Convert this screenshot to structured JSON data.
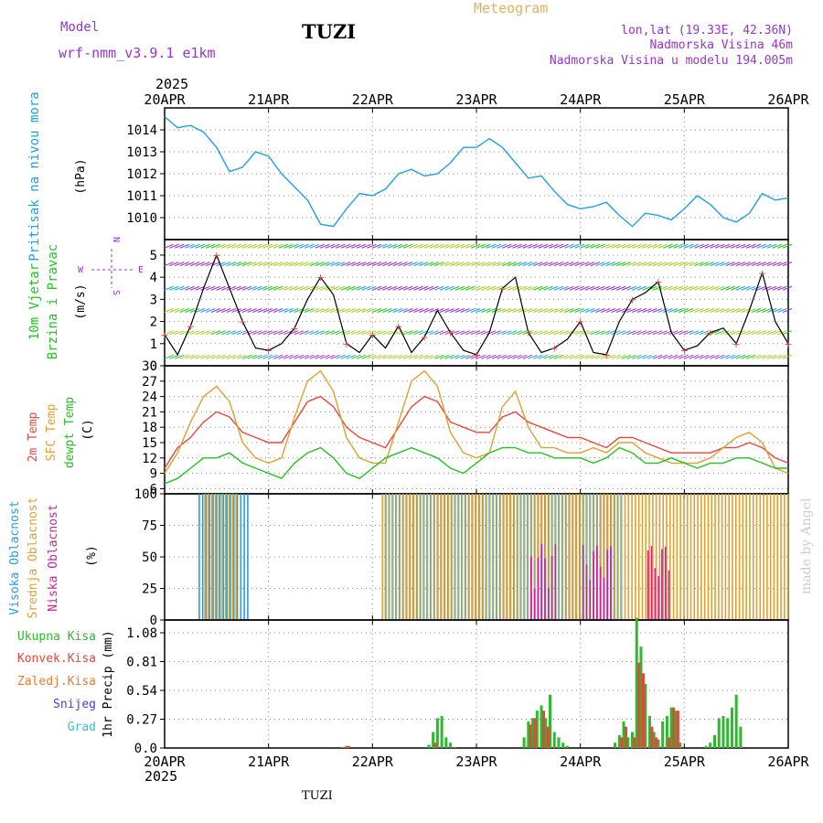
{
  "header": {
    "model_label": "Model",
    "model_name": "wrf-nmm_v3.9.1 e1km",
    "station": "TUZI",
    "product": "Meteogram",
    "coords": "lon,lat (19.33E, 42.36N)",
    "elevation": "Nadmorska Visina 46m",
    "model_elevation": "Nadmorska Visina u modelu 194.005m",
    "year_top": "2025",
    "year_bottom": "2025",
    "footer_station": "TUZI",
    "credit": "made by Angel"
  },
  "colors": {
    "pressure": "#1fa0e6",
    "t2m": "#e8463c",
    "sfc": "#e0a030",
    "dewpt": "#22c422",
    "high_cloud": "#1ea0e6",
    "mid_cloud": "#e0a030",
    "low_cloud": "#cc2299",
    "total_precip": "#2db82d",
    "conv_precip": "#e8463c",
    "strat_precip": "#e87a30",
    "snow": "#4040e0",
    "graupel": "#30c8c8",
    "wind_axis": "#9933cc",
    "title": "#9933cc",
    "meteogram_label": "#e0b060"
  },
  "x_axis": {
    "tick_labels": [
      "20APR",
      "21APR",
      "22APR",
      "23APR",
      "24APR",
      "25APR",
      "26APR"
    ]
  },
  "panels": {
    "pressure": {
      "label_main": "Pritisak na nivou mora",
      "unit": "(hPa)"
    },
    "wind": {
      "label_line1": "10m Vjetar",
      "label_line2": "Brzina i Pravac",
      "unit": "(m/s)",
      "compass_w": "W",
      "compass_e": "E",
      "compass_n": "N",
      "compass_s": "S"
    },
    "temp": {
      "label_t2m": "2m Temp",
      "label_sfc": "SFC Temp",
      "label_dew": "dewpt Temp",
      "unit": "(C)"
    },
    "cloud": {
      "label_high": "Visoka Oblacnost",
      "label_mid": "Srednja Oblacnost",
      "label_low": "Niska Oblacnost",
      "unit": "(%)"
    },
    "precip": {
      "legend_total": "Ukupna Kisa",
      "legend_conv": "Konvek.Kisa",
      "legend_strat": "Zaledj.Kisa",
      "legend_snow": "Snijeg",
      "legend_graupel": "Grad",
      "ylabel": "1hr Precip (mm)"
    }
  },
  "chart_data": [
    {
      "type": "line",
      "name": "pressure",
      "ylim": [
        1009,
        1015
      ],
      "y_ticks": [
        1010,
        1011,
        1012,
        1013,
        1014
      ],
      "x_hours": [
        0,
        3,
        6,
        9,
        12,
        15,
        18,
        21,
        24,
        27,
        30,
        33,
        36,
        39,
        42,
        45,
        48,
        51,
        54,
        57,
        60,
        63,
        66,
        69,
        72,
        75,
        78,
        81,
        84,
        87,
        90,
        93,
        96,
        99,
        102,
        105,
        108,
        111,
        114,
        117,
        120,
        123,
        126,
        129,
        132,
        135,
        138,
        141,
        144
      ],
      "values": [
        1014.6,
        1014.1,
        1014.2,
        1013.9,
        1013.2,
        1012.1,
        1012.3,
        1013.0,
        1012.8,
        1012.0,
        1011.4,
        1010.8,
        1009.7,
        1009.6,
        1010.4,
        1011.1,
        1011.0,
        1011.3,
        1012.0,
        1012.2,
        1011.9,
        1012.0,
        1012.5,
        1013.2,
        1013.2,
        1013.6,
        1013.2,
        1012.5,
        1011.8,
        1011.9,
        1011.2,
        1010.6,
        1010.4,
        1010.5,
        1010.7,
        1010.1,
        1009.6,
        1010.2,
        1010.1,
        1009.9,
        1010.4,
        1011.0,
        1010.6,
        1010.0,
        1009.8,
        1010.2,
        1011.1,
        1010.8,
        1010.9
      ]
    },
    {
      "type": "line",
      "name": "wind_speed",
      "ylim": [
        0,
        5.7
      ],
      "y_ticks": [
        0,
        1,
        2,
        3,
        4,
        5
      ],
      "x_hours": [
        0,
        3,
        6,
        9,
        12,
        15,
        18,
        21,
        24,
        27,
        30,
        33,
        36,
        39,
        42,
        45,
        48,
        51,
        54,
        57,
        60,
        63,
        66,
        69,
        72,
        75,
        78,
        81,
        84,
        87,
        90,
        93,
        96,
        99,
        102,
        105,
        108,
        111,
        114,
        117,
        120,
        123,
        126,
        129,
        132,
        135,
        138,
        141,
        144
      ],
      "values": [
        1.4,
        0.5,
        1.8,
        3.5,
        5.0,
        3.5,
        2.0,
        0.8,
        0.7,
        1.0,
        1.7,
        3.0,
        4.0,
        3.2,
        1.0,
        0.6,
        1.4,
        0.8,
        1.8,
        0.6,
        1.3,
        2.5,
        1.5,
        0.7,
        0.5,
        1.5,
        3.5,
        4.0,
        1.5,
        0.6,
        0.8,
        1.2,
        2.0,
        0.6,
        0.5,
        2.0,
        3.0,
        3.3,
        3.8,
        1.5,
        0.7,
        0.9,
        1.5,
        1.7,
        1.0,
        2.5,
        4.2,
        2.0,
        1.0
      ]
    },
    {
      "type": "line",
      "name": "temperature",
      "ylim": [
        5,
        30
      ],
      "y_ticks": [
        6,
        9,
        12,
        15,
        18,
        21,
        24,
        27,
        30
      ],
      "x_hours": [
        0,
        3,
        6,
        9,
        12,
        15,
        18,
        21,
        24,
        27,
        30,
        33,
        36,
        39,
        42,
        45,
        48,
        51,
        54,
        57,
        60,
        63,
        66,
        69,
        72,
        75,
        78,
        81,
        84,
        87,
        90,
        93,
        96,
        99,
        102,
        105,
        108,
        111,
        114,
        117,
        120,
        123,
        126,
        129,
        132,
        135,
        138,
        141,
        144
      ],
      "series": [
        {
          "name": "2m Temp",
          "key": "t2m",
          "values": [
            10,
            14,
            16,
            19,
            21,
            20,
            17,
            16,
            15,
            15,
            19,
            23,
            24,
            22,
            18,
            16,
            15,
            14,
            18,
            22,
            24,
            23,
            19,
            18,
            17,
            17,
            20,
            21,
            19,
            18,
            17,
            16,
            16,
            15,
            14,
            16,
            16,
            15,
            14,
            13,
            13,
            13,
            13,
            14,
            14,
            15,
            14,
            12,
            11
          ]
        },
        {
          "name": "SFC Temp",
          "key": "sfc",
          "values": [
            9,
            13,
            19,
            24,
            26,
            23,
            15,
            12,
            11,
            12,
            20,
            27,
            29,
            25,
            16,
            12,
            11,
            11,
            19,
            27,
            29,
            26,
            17,
            13,
            12,
            13,
            22,
            25,
            18,
            14,
            14,
            13,
            13,
            14,
            13,
            15,
            15,
            13,
            12,
            11,
            11,
            11,
            12,
            14,
            16,
            17,
            15,
            10,
            9
          ]
        },
        {
          "name": "dewpt Temp",
          "key": "dewpt",
          "values": [
            7,
            8,
            10,
            12,
            12,
            13,
            11,
            10,
            9,
            8,
            11,
            13,
            14,
            12,
            9,
            8,
            10,
            12,
            13,
            14,
            13,
            12,
            10,
            9,
            11,
            13,
            14,
            14,
            13,
            13,
            12,
            12,
            12,
            11,
            12,
            14,
            13,
            11,
            11,
            12,
            11,
            10,
            11,
            11,
            12,
            12,
            11,
            10,
            10
          ]
        }
      ]
    },
    {
      "type": "bar",
      "name": "cloud_cover",
      "ylim": [
        0,
        100
      ],
      "y_ticks": [
        0,
        25,
        50,
        75,
        100
      ],
      "series": [
        {
          "name": "Visoka Oblacnost",
          "key": "high_cloud",
          "intervals": [
            [
              8,
              20
            ],
            [
              51,
              106
            ]
          ],
          "value": 100
        },
        {
          "name": "Srednja Oblacnost",
          "key": "mid_cloud",
          "intervals": [
            [
              9,
              17
            ],
            [
              50,
              144
            ]
          ],
          "value": 100
        },
        {
          "name": "Niska Oblacnost",
          "key": "low_cloud",
          "intervals": [
            [
              84,
              90
            ],
            [
              96,
              103
            ],
            [
              111,
              116
            ]
          ],
          "value": 60
        }
      ]
    },
    {
      "type": "bar",
      "name": "precipitation",
      "ylim": [
        0,
        1.2
      ],
      "y_ticks": [
        0,
        0.27,
        0.54,
        0.81,
        1.08
      ],
      "series": [
        {
          "name": "Ukupna Kisa",
          "key": "total_precip",
          "x_hours": [
            41,
            42,
            61,
            62,
            63,
            64,
            65,
            66,
            67,
            83,
            84,
            85,
            86,
            87,
            88,
            89,
            90,
            91,
            92,
            93,
            104,
            105,
            106,
            107,
            108,
            109,
            110,
            111,
            112,
            113,
            114,
            115,
            116,
            117,
            118,
            119,
            125,
            126,
            127,
            128,
            129,
            130,
            131,
            132,
            133
          ],
          "values": [
            0.01,
            0.02,
            0.03,
            0.15,
            0.28,
            0.3,
            0.1,
            0.05,
            0.01,
            0.1,
            0.25,
            0.28,
            0.35,
            0.4,
            0.28,
            0.5,
            0.15,
            0.1,
            0.05,
            0.02,
            0.05,
            0.12,
            0.25,
            0.1,
            0.15,
            1.22,
            0.95,
            0.6,
            0.3,
            0.15,
            0.08,
            0.25,
            0.3,
            0.38,
            0.35,
            0.05,
            0.02,
            0.05,
            0.12,
            0.28,
            0.3,
            0.28,
            0.38,
            0.5,
            0.2
          ]
        },
        {
          "name": "Konvek.Kisa",
          "key": "conv_precip",
          "x_hours": [
            41,
            42,
            62,
            84,
            85,
            87,
            88,
            105,
            106,
            108,
            109,
            110,
            112,
            113,
            116,
            117,
            118
          ],
          "values": [
            0.01,
            0.02,
            0.05,
            0.22,
            0.28,
            0.35,
            0.2,
            0.1,
            0.2,
            0.1,
            0.8,
            0.7,
            0.2,
            0.1,
            0.1,
            0.38,
            0.35
          ]
        }
      ]
    }
  ]
}
